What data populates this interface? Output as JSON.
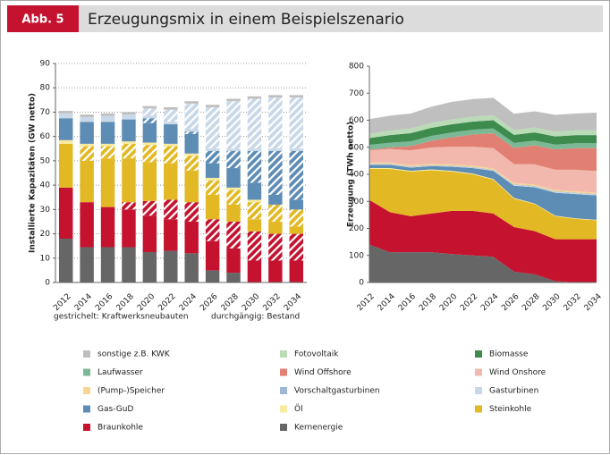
{
  "figure": {
    "label": "Abb. 5",
    "title": "Erzeugungsmix in einem Beispielszenario"
  },
  "chart_data": [
    {
      "type": "bar",
      "stacked": true,
      "y_label": "Installierte Kapazitäten (GW netto)",
      "categories": [
        "2012",
        "2014",
        "2016",
        "2018",
        "2020",
        "2022",
        "2024",
        "2026",
        "2028",
        "2030",
        "2032",
        "2034"
      ],
      "annotations": [
        "gestrichelt: Kraftwerksneubauten",
        "durchgängig: Bestand"
      ],
      "ylim": [
        0,
        90
      ],
      "yticks": [
        0,
        10,
        20,
        30,
        40,
        50,
        60,
        70,
        80,
        90
      ],
      "grid": true,
      "series": [
        {
          "color": "#666666",
          "hatched": false,
          "values": [
            18,
            14.5,
            14.5,
            14.5,
            12.5,
            13,
            12,
            5,
            4,
            0,
            0,
            0
          ]
        },
        {
          "color": "#c4122f",
          "hatched": false,
          "values": [
            21,
            18.5,
            16.5,
            15.5,
            15,
            13,
            13,
            12,
            10,
            9,
            9,
            9
          ]
        },
        {
          "color": "#c4122f",
          "hatched": true,
          "values": [
            0,
            0,
            0,
            3,
            6,
            8,
            8,
            9,
            11,
            12,
            11,
            11
          ]
        },
        {
          "color": "#e2b924",
          "hatched": false,
          "values": [
            18,
            17,
            20,
            18,
            16,
            15,
            13,
            10,
            7,
            5,
            5,
            3
          ]
        },
        {
          "color": "#e2b924",
          "hatched": true,
          "values": [
            0,
            6,
            5,
            6,
            7,
            7,
            6,
            6,
            6,
            7,
            7,
            7
          ]
        },
        {
          "color": "#f8ea9e",
          "hatched": false,
          "values": [
            1.5,
            1,
            1,
            1,
            1,
            1,
            1,
            1,
            1,
            1,
            0,
            0
          ]
        },
        {
          "color": "#5d8cb5",
          "hatched": false,
          "values": [
            9,
            9,
            9,
            9,
            8,
            8,
            8,
            6,
            8,
            7,
            4,
            4
          ]
        },
        {
          "color": "#5d8cb5",
          "hatched": true,
          "values": [
            0,
            0,
            0,
            0,
            2,
            0,
            1,
            5,
            7,
            13,
            18,
            20
          ]
        },
        {
          "color": "#c9d8e8",
          "hatched": false,
          "values": [
            2,
            2,
            2.5,
            2,
            1,
            1,
            1,
            1,
            1,
            1,
            1,
            1
          ]
        },
        {
          "color": "#c9d8e8",
          "hatched": true,
          "values": [
            0,
            0,
            0,
            0,
            3,
            5,
            10.5,
            17,
            19.5,
            20.5,
            21,
            21
          ]
        },
        {
          "color": "#bfbfbf",
          "hatched": false,
          "values": [
            1,
            1,
            1,
            1,
            1,
            1,
            1,
            1,
            1,
            1,
            1,
            1
          ]
        }
      ]
    },
    {
      "type": "area",
      "stacked": true,
      "y_label": "Erzeugung (TWh netto)",
      "categories": [
        "2012",
        "2014",
        "2016",
        "2018",
        "2020",
        "2022",
        "2024",
        "2026",
        "2028",
        "2030",
        "2032",
        "2034"
      ],
      "ylim": [
        0,
        800
      ],
      "yticks": [
        0,
        100,
        200,
        300,
        400,
        500,
        600,
        700,
        800
      ],
      "grid": false,
      "legend": "bottom",
      "series": [
        {
          "name": "Kernenergie",
          "color": "#666666",
          "values": [
            140,
            112,
            112,
            112,
            105,
            100,
            95,
            40,
            30,
            5,
            0,
            0
          ]
        },
        {
          "name": "Braunkohle",
          "color": "#c4122f",
          "values": [
            165,
            148,
            133,
            143,
            160,
            165,
            160,
            165,
            160,
            155,
            160,
            160
          ]
        },
        {
          "name": "Steinkohle",
          "color": "#e2b924",
          "values": [
            115,
            160,
            165,
            160,
            145,
            135,
            125,
            105,
            100,
            85,
            75,
            70
          ]
        },
        {
          "name": "Öl",
          "color": "#f8ea9e",
          "values": [
            3,
            3,
            3,
            3,
            3,
            3,
            3,
            3,
            2,
            2,
            2,
            2
          ]
        },
        {
          "name": "Gas-GuD",
          "color": "#5d8cb5",
          "values": [
            12,
            12,
            12,
            12,
            15,
            20,
            30,
            45,
            60,
            85,
            90,
            90
          ]
        },
        {
          "name": "Gasturbinen",
          "color": "#c9d8e8",
          "values": [
            2,
            2,
            2,
            2,
            2,
            2,
            2,
            3,
            3,
            3,
            3,
            3
          ]
        },
        {
          "name": "Vorschaltgasturbinen",
          "color": "#9db7d4",
          "values": [
            2,
            2,
            2,
            2,
            2,
            2,
            2,
            2,
            2,
            2,
            2,
            2
          ]
        },
        {
          "name": "(Pump-)Speicher",
          "color": "#f7d694",
          "values": [
            5,
            5,
            5,
            5,
            5,
            5,
            5,
            5,
            5,
            5,
            5,
            5
          ]
        },
        {
          "name": "Wind Onshore",
          "color": "#f2b7ad",
          "values": [
            45,
            50,
            55,
            60,
            65,
            70,
            75,
            70,
            75,
            75,
            80,
            80
          ]
        },
        {
          "name": "Wind Offshore",
          "color": "#e27f73",
          "values": [
            2,
            5,
            15,
            25,
            35,
            45,
            55,
            60,
            70,
            75,
            80,
            85
          ]
        },
        {
          "name": "Laufwasser",
          "color": "#7bb896",
          "values": [
            18,
            18,
            18,
            18,
            18,
            18,
            18,
            18,
            18,
            18,
            18,
            18
          ]
        },
        {
          "name": "Biomasse",
          "color": "#3d8b4d",
          "values": [
            25,
            28,
            30,
            30,
            30,
            30,
            30,
            30,
            30,
            30,
            30,
            30
          ]
        },
        {
          "name": "Fotovoltaik",
          "color": "#b9dbb5",
          "values": [
            15,
            17,
            18,
            18,
            18,
            18,
            18,
            18,
            18,
            18,
            18,
            18
          ]
        },
        {
          "name": "sonstige z.B. KWK",
          "color": "#bfbfbf",
          "values": [
            55,
            55,
            55,
            60,
            65,
            65,
            65,
            60,
            60,
            62,
            62,
            65
          ]
        }
      ]
    }
  ]
}
